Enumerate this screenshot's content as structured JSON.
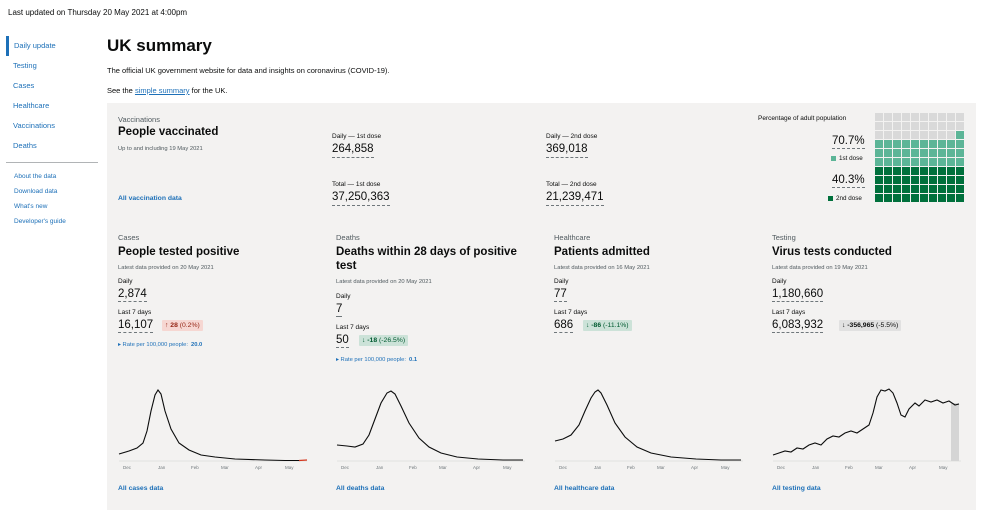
{
  "header": {
    "last_updated": "Last updated on Thursday 20 May 2021 at 4:00pm",
    "title": "UK summary",
    "description": "The official UK government website for data and insights on coronavirus (COVID-19).",
    "see_prefix": "See the ",
    "see_link": "simple summary",
    "see_suffix": " for the UK."
  },
  "sidebar": {
    "items": [
      {
        "label": "Daily update",
        "active": true
      },
      {
        "label": "Testing"
      },
      {
        "label": "Cases"
      },
      {
        "label": "Healthcare"
      },
      {
        "label": "Vaccinations"
      },
      {
        "label": "Deaths"
      }
    ],
    "secondary": [
      {
        "label": "About the data"
      },
      {
        "label": "Download data"
      },
      {
        "label": "What's new"
      },
      {
        "label": "Developer's guide"
      }
    ]
  },
  "vaccinations": {
    "category": "Vaccinations",
    "title": "People vaccinated",
    "subtitle": "Up to and including 19 May 2021",
    "link": "All vaccination data",
    "daily_first_label": "Daily — 1st dose",
    "daily_first_value": "264,858",
    "daily_second_label": "Daily — 2nd dose",
    "daily_second_value": "369,018",
    "total_first_label": "Total — 1st dose",
    "total_first_value": "37,250,363",
    "total_second_label": "Total — 2nd dose",
    "total_second_value": "21,239,471",
    "pct_label": "Percentage of adult population",
    "first_pct": "70.7%",
    "first_key": "1st dose",
    "second_pct": "40.3%",
    "second_key": "2nd dose",
    "first_fraction": 0.707,
    "second_fraction": 0.403,
    "colors": {
      "first": "#5cb597",
      "second": "#00703c",
      "empty": "#d9d9d9"
    }
  },
  "cards": [
    {
      "category": "Cases",
      "title": "People tested positive",
      "subtitle": "Latest data provided on 20 May 2021",
      "daily_label": "Daily",
      "daily_value": "2,874",
      "last7_label": "Last 7 days",
      "last7_value": "16,107",
      "change_value": "28",
      "change_pct": "(0.2%)",
      "change_icon": "arrow-up-icon",
      "rate_label": "Rate per 100,000 people:",
      "rate_value": "20.0",
      "link": "All cases data",
      "x_ticks": [
        "Dec",
        "Jan",
        "Feb",
        "Mar",
        "Apr",
        "May"
      ]
    },
    {
      "category": "Deaths",
      "title": "Deaths within 28 days of positive test",
      "subtitle": "Latest data provided on 20 May 2021",
      "daily_label": "Daily",
      "daily_value": "7",
      "last7_label": "Last 7 days",
      "last7_value": "50",
      "change_value": "-18",
      "change_pct": "(-26.5%)",
      "change_icon": "arrow-down-icon",
      "rate_label": "Rate per 100,000 people:",
      "rate_value": "0.1",
      "link": "All deaths data",
      "x_ticks": [
        "Dec",
        "Jan",
        "Feb",
        "Mar",
        "Apr",
        "May"
      ]
    },
    {
      "category": "Healthcare",
      "title": "Patients admitted",
      "subtitle": "Latest data provided on 16 May 2021",
      "daily_label": "Daily",
      "daily_value": "77",
      "last7_label": "Last 7 days",
      "last7_value": "686",
      "change_value": "-86",
      "change_pct": "(-11.1%)",
      "change_icon": "arrow-down-icon",
      "link": "All healthcare data",
      "x_ticks": [
        "Dec",
        "Jan",
        "Feb",
        "Mar",
        "Apr",
        "May"
      ]
    },
    {
      "category": "Testing",
      "title": "Virus tests conducted",
      "subtitle": "Latest data provided on 19 May 2021",
      "daily_label": "Daily",
      "daily_value": "1,180,660",
      "last7_label": "Last 7 days",
      "last7_value": "6,083,932",
      "change_value": "-356,965",
      "change_pct": "(-5.5%)",
      "change_icon": "arrow-down-icon",
      "link": "All testing data",
      "x_ticks": [
        "Dec",
        "Jan",
        "Feb",
        "Mar",
        "Apr",
        "May"
      ]
    }
  ]
}
